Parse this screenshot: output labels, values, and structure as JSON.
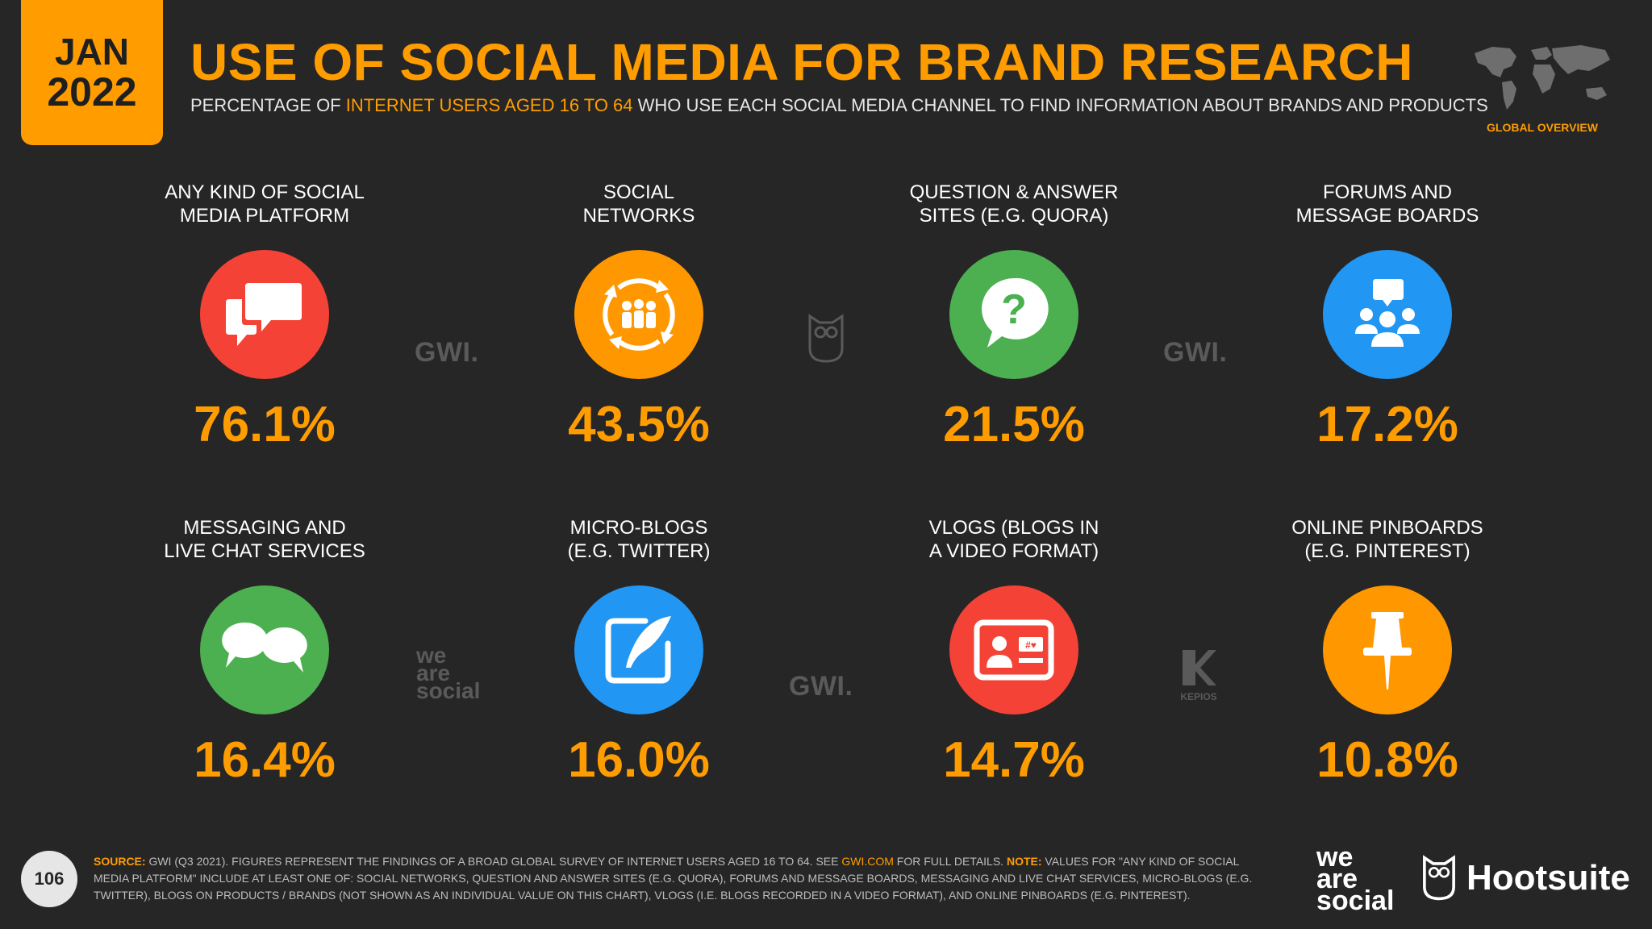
{
  "header": {
    "month": "JAN",
    "year": "2022",
    "title": "USE OF SOCIAL MEDIA FOR BRAND RESEARCH",
    "subtitle_pre": "PERCENTAGE OF ",
    "subtitle_highlight": "INTERNET USERS AGED 16 TO 64",
    "subtitle_post": " WHO USE EACH SOCIAL MEDIA CHANNEL TO FIND INFORMATION ABOUT BRANDS AND PRODUCTS",
    "global_overview": "GLOBAL OVERVIEW"
  },
  "chart_data": {
    "type": "bar",
    "categories": [
      "ANY KIND OF SOCIAL MEDIA PLATFORM",
      "SOCIAL NETWORKS",
      "QUESTION & ANSWER SITES (E.G. QUORA)",
      "FORUMS AND MESSAGE BOARDS",
      "MESSAGING AND LIVE CHAT SERVICES",
      "MICRO-BLOGS (E.G. TWITTER)",
      "VLOGS (BLOGS IN A VIDEO FORMAT)",
      "ONLINE PINBOARDS (E.G. PINTEREST)"
    ],
    "values": [
      76.1,
      43.5,
      21.5,
      17.2,
      16.4,
      16.0,
      14.7,
      10.8
    ],
    "unit": "%"
  },
  "items": [
    {
      "line1": "ANY KIND OF SOCIAL",
      "line2": "MEDIA PLATFORM",
      "value": "76.1%",
      "icon": "chat-bubbles-icon",
      "color": "#f44336"
    },
    {
      "line1": "SOCIAL",
      "line2": "NETWORKS",
      "value": "43.5%",
      "icon": "people-network-icon",
      "color": "#ff9800"
    },
    {
      "line1": "QUESTION & ANSWER",
      "line2": "SITES (E.G. QUORA)",
      "value": "21.5%",
      "icon": "question-bubble-icon",
      "color": "#4caf50"
    },
    {
      "line1": "FORUMS AND",
      "line2": "MESSAGE BOARDS",
      "value": "17.2%",
      "icon": "group-message-icon",
      "color": "#2196f3"
    },
    {
      "line1": "MESSAGING AND",
      "line2": "LIVE CHAT SERVICES",
      "value": "16.4%",
      "icon": "speech-bubbles-icon",
      "color": "#4caf50"
    },
    {
      "line1": "MICRO-BLOGS",
      "line2": "(E.G. TWITTER)",
      "value": "16.0%",
      "icon": "quill-edit-icon",
      "color": "#2196f3"
    },
    {
      "line1": "VLOGS (BLOGS IN",
      "line2": "A VIDEO FORMAT)",
      "value": "14.7%",
      "icon": "video-card-icon",
      "color": "#f44336"
    },
    {
      "line1": "ONLINE PINBOARDS",
      "line2": "(E.G. PINTEREST)",
      "value": "10.8%",
      "icon": "pushpin-icon",
      "color": "#ff9800"
    }
  ],
  "watermarks": {
    "gwi": "GWI.",
    "we": "we",
    "are": "are",
    "social": "social",
    "kepios": "KEPIOS"
  },
  "footer": {
    "page_number": "106",
    "source_label": "SOURCE:",
    "source_text_1": " GWI (Q3 2021). FIGURES REPRESENT THE FINDINGS OF A BROAD GLOBAL SURVEY OF INTERNET USERS AGED 16 TO 64. SEE ",
    "source_link": "GWI.COM",
    "source_text_2": " FOR FULL DETAILS. ",
    "note_label": "NOTE:",
    "note_text": " VALUES FOR \"ANY KIND OF SOCIAL MEDIA PLATFORM\" INCLUDE AT LEAST ONE OF: SOCIAL NETWORKS, QUESTION AND ANSWER SITES (E.G. QUORA), FORUMS AND MESSAGE BOARDS, MESSAGING AND LIVE CHAT SERVICES, MICRO-BLOGS (E.G. TWITTER), BLOGS ON PRODUCTS / BRANDS (NOT SHOWN AS AN INDIVIDUAL VALUE ON THIS CHART), VLOGS (I.E. BLOGS RECORDED IN A VIDEO FORMAT), AND ONLINE PINBOARDS (E.G. PINTEREST).",
    "brand_we": "we",
    "brand_are": "are",
    "brand_social": "social",
    "brand_hootsuite": "Hootsuite"
  }
}
